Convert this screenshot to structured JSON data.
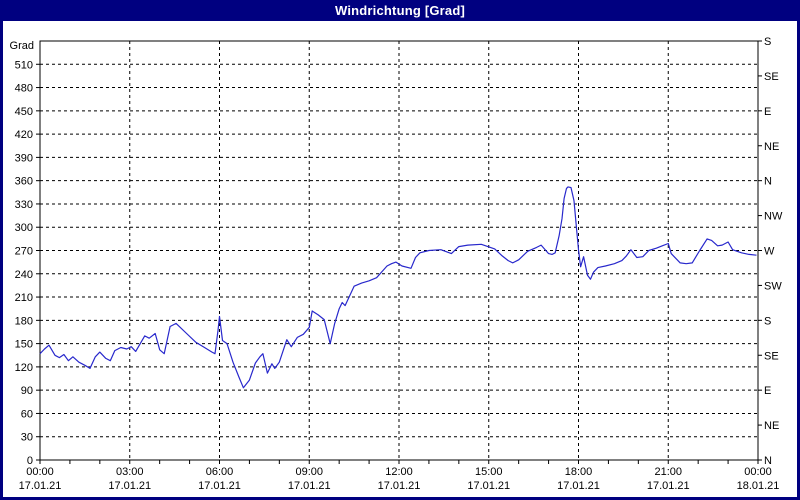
{
  "window": {
    "title": "Windrichtung [Grad]"
  },
  "colors": {
    "title_bar": "#000080",
    "title_text": "#ffffff",
    "window_border": "#000080",
    "background": "#ffffff",
    "plot_bg": "#ffffff",
    "grid": "#000000",
    "axis": "#000000",
    "label": "#000000",
    "line": "#2828cc"
  },
  "chart_data": {
    "type": "line",
    "title": "Windrichtung [Grad]",
    "grid": "dashed",
    "legend_position": "none",
    "y_axis_left": {
      "unit": "Grad",
      "min": 0,
      "max": 540,
      "step": 30,
      "tick_labels": [
        "0",
        "30",
        "60",
        "90",
        "120",
        "150",
        "180",
        "210",
        "240",
        "270",
        "300",
        "330",
        "360",
        "390",
        "420",
        "450",
        "480",
        "510"
      ]
    },
    "y_axis_right": {
      "step": 45,
      "tick_labels": [
        "N",
        "NE",
        "E",
        "SE",
        "S",
        "SW",
        "W",
        "NW",
        "N",
        "NE",
        "E",
        "SE",
        "S"
      ]
    },
    "x_axis": {
      "hours_span": 24,
      "major_step_hours": 3,
      "minor_step_hours": 1,
      "labels": [
        {
          "time": "00:00",
          "date": "17.01.21"
        },
        {
          "time": "03:00",
          "date": "17.01.21"
        },
        {
          "time": "06:00",
          "date": "17.01.21"
        },
        {
          "time": "09:00",
          "date": "17.01.21"
        },
        {
          "time": "12:00",
          "date": "17.01.21"
        },
        {
          "time": "15:00",
          "date": "17.01.21"
        },
        {
          "time": "18:00",
          "date": "17.01.21"
        },
        {
          "time": "21:00",
          "date": "17.01.21"
        },
        {
          "time": "00:00",
          "date": "18.01.21"
        }
      ]
    },
    "series": [
      {
        "name": "Windrichtung",
        "color": "#2828cc",
        "points": [
          [
            0.0,
            137
          ],
          [
            0.15,
            143
          ],
          [
            0.3,
            148
          ],
          [
            0.5,
            135
          ],
          [
            0.65,
            132
          ],
          [
            0.8,
            136
          ],
          [
            0.95,
            128
          ],
          [
            1.1,
            133
          ],
          [
            1.3,
            126
          ],
          [
            1.5,
            122
          ],
          [
            1.67,
            118
          ],
          [
            1.85,
            133
          ],
          [
            2.0,
            139
          ],
          [
            2.2,
            131
          ],
          [
            2.35,
            128
          ],
          [
            2.5,
            141
          ],
          [
            2.7,
            145
          ],
          [
            2.9,
            143
          ],
          [
            3.05,
            146
          ],
          [
            3.2,
            140
          ],
          [
            3.5,
            160
          ],
          [
            3.65,
            157
          ],
          [
            3.85,
            163
          ],
          [
            4.0,
            142
          ],
          [
            4.15,
            137
          ],
          [
            4.35,
            172
          ],
          [
            4.55,
            176
          ],
          [
            4.9,
            163
          ],
          [
            5.2,
            152
          ],
          [
            5.5,
            145
          ],
          [
            5.75,
            139
          ],
          [
            5.85,
            137
          ],
          [
            5.95,
            167
          ],
          [
            6.0,
            185
          ],
          [
            6.1,
            154
          ],
          [
            6.25,
            150
          ],
          [
            6.45,
            126
          ],
          [
            6.65,
            107
          ],
          [
            6.8,
            93
          ],
          [
            7.0,
            103
          ],
          [
            7.2,
            125
          ],
          [
            7.35,
            133
          ],
          [
            7.45,
            137
          ],
          [
            7.6,
            112
          ],
          [
            7.75,
            124
          ],
          [
            7.85,
            118
          ],
          [
            8.0,
            126
          ],
          [
            8.25,
            155
          ],
          [
            8.4,
            146
          ],
          [
            8.6,
            158
          ],
          [
            8.8,
            162
          ],
          [
            9.0,
            171
          ],
          [
            9.1,
            192
          ],
          [
            9.3,
            187
          ],
          [
            9.5,
            181
          ],
          [
            9.7,
            150
          ],
          [
            9.85,
            176
          ],
          [
            10.0,
            195
          ],
          [
            10.1,
            203
          ],
          [
            10.2,
            199
          ],
          [
            10.5,
            224
          ],
          [
            10.75,
            228
          ],
          [
            11.0,
            231
          ],
          [
            11.25,
            235
          ],
          [
            11.6,
            250
          ],
          [
            11.75,
            253
          ],
          [
            11.9,
            255
          ],
          [
            12.1,
            250
          ],
          [
            12.4,
            247
          ],
          [
            12.55,
            261
          ],
          [
            12.7,
            267
          ],
          [
            13.0,
            270
          ],
          [
            13.4,
            271
          ],
          [
            13.75,
            266
          ],
          [
            14.0,
            275
          ],
          [
            14.3,
            277
          ],
          [
            14.75,
            278
          ],
          [
            15.2,
            272
          ],
          [
            15.45,
            263
          ],
          [
            15.65,
            257
          ],
          [
            15.8,
            254
          ],
          [
            16.0,
            258
          ],
          [
            16.3,
            269
          ],
          [
            16.6,
            274
          ],
          [
            16.75,
            277
          ],
          [
            17.0,
            266
          ],
          [
            17.12,
            265
          ],
          [
            17.22,
            267
          ],
          [
            17.35,
            289
          ],
          [
            17.45,
            311
          ],
          [
            17.52,
            337
          ],
          [
            17.6,
            350
          ],
          [
            17.65,
            352
          ],
          [
            17.75,
            351
          ],
          [
            17.85,
            334
          ],
          [
            17.93,
            300
          ],
          [
            18.0,
            271
          ],
          [
            18.07,
            249
          ],
          [
            18.17,
            262
          ],
          [
            18.3,
            238
          ],
          [
            18.4,
            233
          ],
          [
            18.5,
            242
          ],
          [
            18.65,
            248
          ],
          [
            18.9,
            250
          ],
          [
            19.2,
            253
          ],
          [
            19.45,
            257
          ],
          [
            19.6,
            263
          ],
          [
            19.75,
            271
          ],
          [
            19.95,
            261
          ],
          [
            20.15,
            262
          ],
          [
            20.35,
            270
          ],
          [
            20.6,
            273
          ],
          [
            20.8,
            276
          ],
          [
            21.0,
            279
          ],
          [
            21.1,
            266
          ],
          [
            21.4,
            254
          ],
          [
            21.6,
            253
          ],
          [
            21.8,
            254
          ],
          [
            22.05,
            270
          ],
          [
            22.3,
            285
          ],
          [
            22.45,
            283
          ],
          [
            22.65,
            276
          ],
          [
            22.8,
            277
          ],
          [
            23.0,
            281
          ],
          [
            23.15,
            271
          ],
          [
            23.3,
            269
          ],
          [
            23.45,
            267
          ],
          [
            23.7,
            265
          ],
          [
            23.95,
            264
          ]
        ]
      }
    ]
  }
}
